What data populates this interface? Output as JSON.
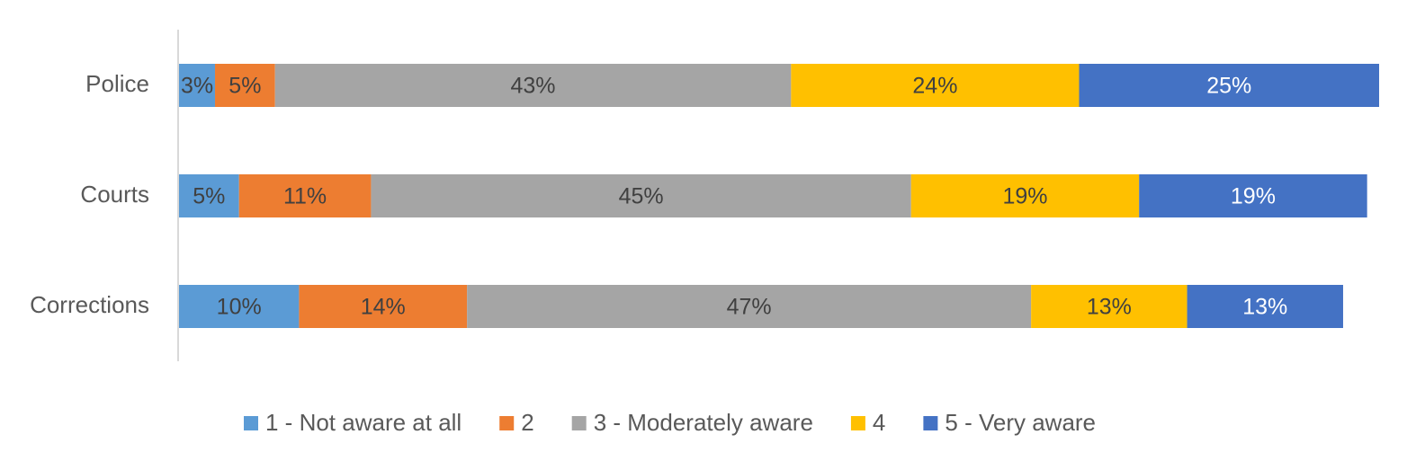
{
  "chart_data": {
    "type": "stacked-barh",
    "categories": [
      "Police",
      "Courts",
      "Corrections"
    ],
    "series": [
      {
        "name": "1 - Not aware at all",
        "color": "#5b9bd5",
        "label_color": "#404040",
        "values": [
          3,
          5,
          10
        ],
        "value_labels": [
          "3%",
          "5%",
          "10%"
        ]
      },
      {
        "name": "2",
        "color": "#ed7d31",
        "label_color": "#404040",
        "values": [
          5,
          11,
          14
        ],
        "value_labels": [
          "5%",
          "11%",
          "14%"
        ]
      },
      {
        "name": "3 - Moderately aware",
        "color": "#a5a5a5",
        "label_color": "#404040",
        "values": [
          43,
          45,
          47
        ],
        "value_labels": [
          "43%",
          "45%",
          "47%"
        ]
      },
      {
        "name": "4",
        "color": "#ffc000",
        "label_color": "#404040",
        "values": [
          24,
          19,
          13
        ],
        "value_labels": [
          "24%",
          "19%",
          "13%"
        ]
      },
      {
        "name": "5 - Very aware",
        "color": "#4472c4",
        "label_color": "#ffffff",
        "values": [
          25,
          19,
          13
        ],
        "value_labels": [
          "25%",
          "19%",
          "13%"
        ]
      }
    ],
    "xlim": [
      0,
      100
    ],
    "legend": "bottom"
  }
}
